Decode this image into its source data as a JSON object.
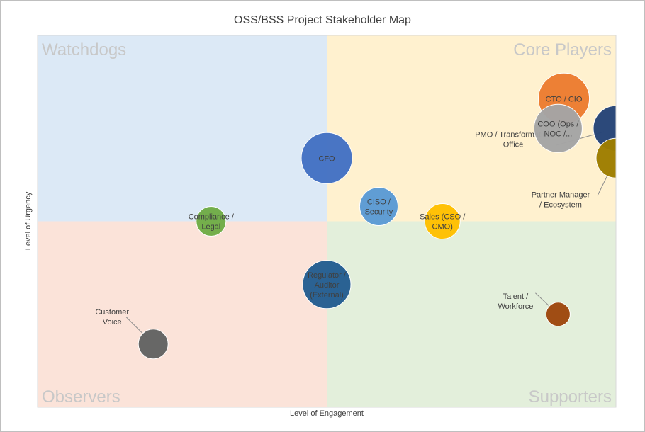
{
  "chart_data": {
    "type": "bubble",
    "title": "OSS/BSS Project Stakeholder Map",
    "xlabel": "Level of Engagement",
    "ylabel": "Level of Urgency",
    "xlim": [
      0,
      10
    ],
    "ylim": [
      0,
      10
    ],
    "grid": false,
    "quadrants": [
      {
        "name": "Watchdogs",
        "position": "top-left",
        "color": "#dce9f6"
      },
      {
        "name": "Core Players",
        "position": "top-right",
        "color": "#fff1cf"
      },
      {
        "name": "Observers",
        "position": "bottom-left",
        "color": "#fbe3d9"
      },
      {
        "name": "Supporters",
        "position": "bottom-right",
        "color": "#e3efdb"
      }
    ],
    "points": [
      {
        "label": "CTO / CIO",
        "x": 9.1,
        "y": 8.3,
        "size": 36,
        "color": "#ed7d31"
      },
      {
        "label": "COO (Ops / NOC /...",
        "x": 9.0,
        "y": 7.5,
        "size": 34,
        "color": "#a5a5a5"
      },
      {
        "label": "PMO / Transformation Office",
        "x": 10.0,
        "y": 7.5,
        "size": 32,
        "color": "#264478"
      },
      {
        "label": "Partner Manager / Ecosystem",
        "x": 10.0,
        "y": 6.7,
        "size": 28,
        "color": "#9e7e00"
      },
      {
        "label": "CFO",
        "x": 5.0,
        "y": 6.7,
        "size": 36,
        "color": "#4472c4"
      },
      {
        "label": "CISO / Security",
        "x": 5.9,
        "y": 5.4,
        "size": 27,
        "color": "#5b9bd5"
      },
      {
        "label": "Compliance / Legal",
        "x": 3.0,
        "y": 5.0,
        "size": 21,
        "color": "#70ad47"
      },
      {
        "label": "Sales (CSO / CMO)",
        "x": 7.0,
        "y": 5.0,
        "size": 25,
        "color": "#ffc000"
      },
      {
        "label": "Regulator / Auditor (External)",
        "x": 5.0,
        "y": 3.3,
        "size": 34,
        "color": "#255e91"
      },
      {
        "label": "Talent / Workforce",
        "x": 9.0,
        "y": 2.5,
        "size": 17,
        "color": "#9e480e"
      },
      {
        "label": "Customer Voice",
        "x": 2.0,
        "y": 1.7,
        "size": 21,
        "color": "#636363"
      }
    ]
  }
}
